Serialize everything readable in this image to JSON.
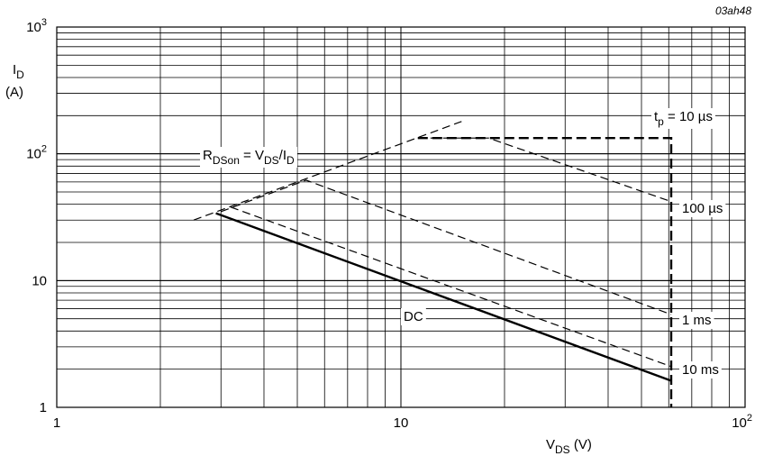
{
  "figure_id": "03ah48",
  "chart_data": {
    "type": "line",
    "x_scale": "log",
    "y_scale": "log",
    "xlim": [
      1,
      100
    ],
    "ylim": [
      1,
      1000
    ],
    "grid": true,
    "x_ticks": [
      {
        "value": 1,
        "label": "1"
      },
      {
        "value": 10,
        "label": "10"
      },
      {
        "value": 100,
        "label": "10",
        "sup": "2"
      }
    ],
    "y_ticks": [
      {
        "value": 1,
        "label": "1"
      },
      {
        "value": 10,
        "label": "10"
      },
      {
        "value": 100,
        "label": "10",
        "sup": "2"
      },
      {
        "value": 1000,
        "label": "10",
        "sup": "3"
      }
    ],
    "xlabel": {
      "main": "V",
      "sub": "DS",
      "unit": " (V)"
    },
    "ylabel": {
      "main": "I",
      "sub": "D",
      "unit": "(A)"
    },
    "rdson_label": {
      "pre": "R",
      "sub1": "DSon",
      "mid": " = V",
      "sub2": "DS",
      "post": "/I",
      "sub3": "D"
    },
    "series": [
      {
        "name": "R_DSon limit",
        "style": "dashed-thin",
        "points": [
          [
            2.5,
            30
          ],
          [
            15,
            180
          ]
        ]
      },
      {
        "label_main": "t",
        "label_sub": "p",
        "label_rest": " = 10 µs",
        "style": "dashed-bold",
        "points": [
          [
            11.2,
            133
          ],
          [
            61,
            133
          ],
          [
            61,
            1
          ]
        ]
      },
      {
        "name": "100 µs",
        "style": "dashed",
        "points": [
          [
            11.2,
            133
          ],
          [
            18,
            133
          ],
          [
            61,
            42
          ]
        ]
      },
      {
        "name": "1 ms",
        "style": "dashed",
        "points": [
          [
            3,
            35
          ],
          [
            5.3,
            62
          ],
          [
            61,
            5.4
          ]
        ]
      },
      {
        "name": "10 ms",
        "style": "dashed",
        "points": [
          [
            3.2,
            38
          ],
          [
            61,
            2.1
          ]
        ]
      },
      {
        "name": "DC",
        "style": "solid",
        "points": [
          [
            2.9,
            34
          ],
          [
            61,
            1.62
          ]
        ]
      }
    ]
  }
}
